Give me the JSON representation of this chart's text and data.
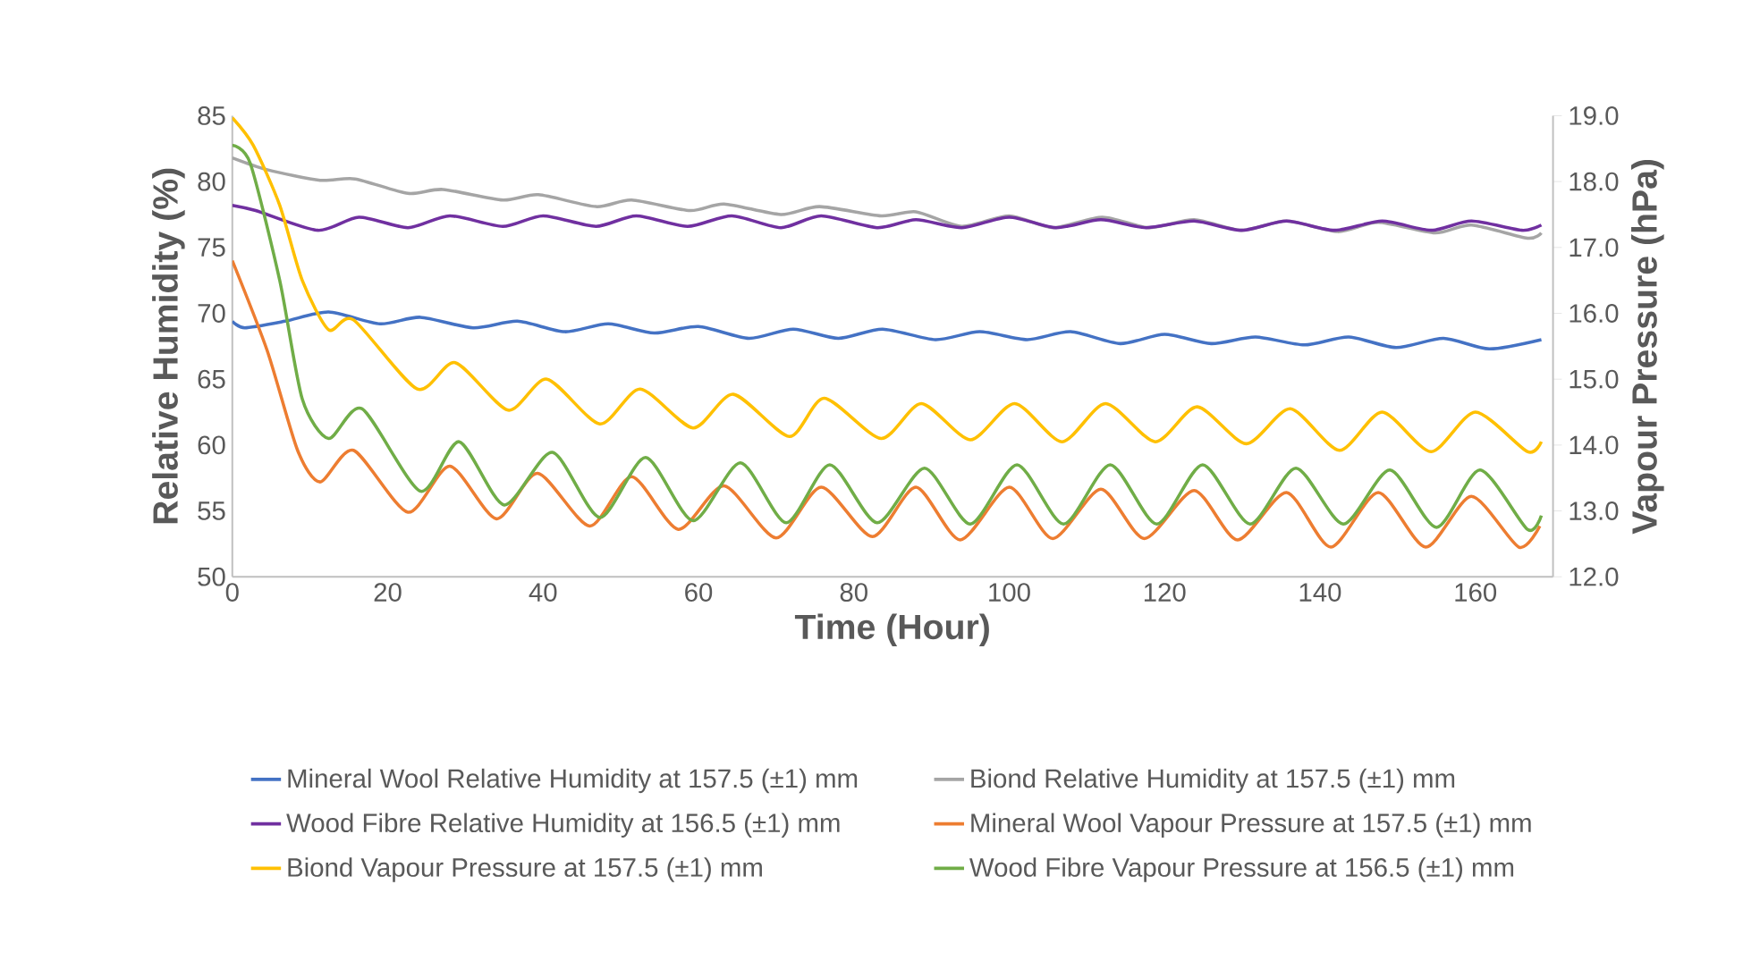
{
  "chart_data": {
    "type": "line",
    "xlabel": "Time (Hour)",
    "ylabel": "Relative Humidity (%)",
    "y2label": "Vapour Pressure (hPa)",
    "xlim": [
      0,
      170
    ],
    "xticks": [
      0,
      20,
      40,
      60,
      80,
      100,
      120,
      140,
      160
    ],
    "ylim": [
      50,
      85
    ],
    "yticks": [
      50,
      55,
      60,
      65,
      70,
      75,
      80,
      85
    ],
    "y2lim": [
      12,
      19
    ],
    "y2ticks": [
      {
        "value": 12,
        "label": "12.0"
      },
      {
        "value": 13,
        "label": "13.0"
      },
      {
        "value": 14,
        "label": "14.0"
      },
      {
        "value": 15,
        "label": "15.0"
      },
      {
        "value": 16,
        "label": "16.0"
      },
      {
        "value": 17,
        "label": "17.0"
      },
      {
        "value": 18,
        "label": "18.0"
      },
      {
        "value": 19,
        "label": "19.0"
      }
    ],
    "grid": false,
    "legend": "bottom",
    "marker": "none",
    "line_style": "solid",
    "series": [
      {
        "name": "Mineral Wool Relative Humidity at 157.5 (±1) mm",
        "color": "#4472c4",
        "axis": "y",
        "x": [
          0,
          1.6,
          6.8,
          12.4,
          19,
          24.2,
          31,
          36.7,
          42.8,
          48.4,
          54.3,
          60,
          66.5,
          72.2,
          78,
          83.7,
          90.5,
          96.2,
          102.3,
          107.9,
          114.3,
          120,
          126,
          131.7,
          138,
          143.7,
          149.8,
          155.9,
          161.8,
          168.5
        ],
        "values": [
          69.4,
          68.9,
          69.4,
          70.1,
          69.2,
          69.7,
          68.9,
          69.4,
          68.6,
          69.2,
          68.5,
          69.0,
          68.1,
          68.8,
          68.1,
          68.8,
          68.0,
          68.6,
          68.0,
          68.6,
          67.7,
          68.4,
          67.7,
          68.2,
          67.6,
          68.2,
          67.4,
          68.1,
          67.3,
          68.0
        ]
      },
      {
        "name": "Biond Relative Humidity at 157.5 (±1) mm",
        "color": "#a5a5a5",
        "axis": "y",
        "x": [
          0,
          4.5,
          11.3,
          15.8,
          22.6,
          27.1,
          34.8,
          39.4,
          46.8,
          51.4,
          58.9,
          63.3,
          70.6,
          75.6,
          83.5,
          88,
          93.9,
          100,
          105.7,
          112,
          118,
          123.8,
          129.9,
          135.7,
          142.3,
          147.5,
          154.8,
          159.5,
          166.7,
          168.5
        ],
        "values": [
          81.8,
          80.9,
          80.1,
          80.2,
          79.1,
          79.4,
          78.6,
          79.0,
          78.1,
          78.6,
          77.8,
          78.3,
          77.5,
          78.1,
          77.4,
          77.7,
          76.6,
          77.4,
          76.5,
          77.3,
          76.5,
          77.1,
          76.3,
          77.0,
          76.2,
          76.9,
          76.1,
          76.7,
          75.7,
          76.1
        ]
      },
      {
        "name": "Wood Fibre Relative Humidity at 156.5 (±1) mm",
        "color": "#7030a0",
        "axis": "y",
        "x": [
          0,
          3,
          11,
          16.3,
          22.6,
          28,
          34.8,
          40,
          46.8,
          52,
          58.6,
          64.3,
          70.6,
          75.8,
          83,
          88,
          93.9,
          100,
          106,
          111.8,
          117.6,
          123.8,
          129.9,
          135.7,
          141.9,
          148,
          154.3,
          159.5,
          166,
          168.5
        ],
        "values": [
          78.2,
          77.8,
          76.3,
          77.3,
          76.5,
          77.4,
          76.6,
          77.4,
          76.6,
          77.4,
          76.6,
          77.4,
          76.5,
          77.4,
          76.5,
          77.1,
          76.5,
          77.3,
          76.5,
          77.1,
          76.5,
          77.0,
          76.3,
          77.0,
          76.3,
          77.0,
          76.3,
          77.0,
          76.3,
          76.7
        ]
      },
      {
        "name": "Mineral Wool Vapour Pressure at 157.5 (±1) mm",
        "color": "#ed7d31",
        "axis": "y2",
        "x": [
          0,
          4.5,
          8.4,
          11.3,
          15.6,
          22.6,
          28,
          34,
          39.3,
          46,
          51.4,
          57.4,
          63.3,
          70,
          75.8,
          82.4,
          88,
          93.7,
          100,
          105.6,
          111.8,
          117.4,
          123.8,
          129.4,
          135.7,
          141.4,
          147.5,
          153.6,
          159.5,
          165.6,
          168.3
        ],
        "values": [
          16.8,
          15.43,
          13.92,
          13.44,
          13.92,
          12.98,
          13.68,
          12.88,
          13.57,
          12.77,
          13.52,
          12.72,
          13.38,
          12.59,
          13.36,
          12.61,
          13.36,
          12.56,
          13.36,
          12.58,
          13.33,
          12.58,
          13.31,
          12.56,
          13.28,
          12.45,
          13.28,
          12.45,
          13.22,
          12.45,
          12.77
        ]
      },
      {
        "name": "Biond Vapour Pressure at 157.5 (±1) mm",
        "color": "#ffc000",
        "axis": "y2",
        "x": [
          0,
          2.7,
          6.1,
          9,
          12.4,
          15.6,
          23.8,
          28.7,
          35.5,
          40.5,
          47.3,
          52.5,
          59.3,
          64.5,
          71.7,
          76.2,
          83.5,
          88.7,
          95,
          100.7,
          106.8,
          112.4,
          118.8,
          124.2,
          130.5,
          136.2,
          142.5,
          148,
          154.3,
          160,
          166.7,
          168.5
        ],
        "values": [
          18.97,
          18.55,
          17.64,
          16.5,
          15.75,
          15.9,
          14.85,
          15.25,
          14.53,
          15.0,
          14.32,
          14.85,
          14.26,
          14.77,
          14.13,
          14.71,
          14.1,
          14.63,
          14.08,
          14.63,
          14.05,
          14.63,
          14.05,
          14.58,
          14.02,
          14.55,
          13.92,
          14.5,
          13.9,
          14.5,
          13.9,
          14.05
        ]
      },
      {
        "name": "Wood Fibre Vapour Pressure at 156.5 (±1) mm",
        "color": "#70ad47",
        "axis": "y2",
        "x": [
          0,
          2.3,
          6.1,
          9,
          12.4,
          16.7,
          24.2,
          29.2,
          35,
          41.2,
          47.3,
          53.2,
          59.3,
          65.4,
          71.3,
          76.9,
          83,
          89.1,
          95,
          101,
          107,
          113,
          119,
          124.9,
          131,
          136.9,
          143,
          149,
          155,
          160.6,
          166.7,
          168.5
        ],
        "values": [
          18.55,
          18.28,
          16.5,
          14.7,
          14.1,
          14.55,
          13.3,
          14.05,
          13.09,
          13.89,
          12.9,
          13.81,
          12.85,
          13.73,
          12.82,
          13.7,
          12.82,
          13.65,
          12.8,
          13.7,
          12.8,
          13.7,
          12.8,
          13.7,
          12.8,
          13.65,
          12.8,
          13.62,
          12.75,
          13.62,
          12.72,
          12.93
        ]
      }
    ]
  }
}
